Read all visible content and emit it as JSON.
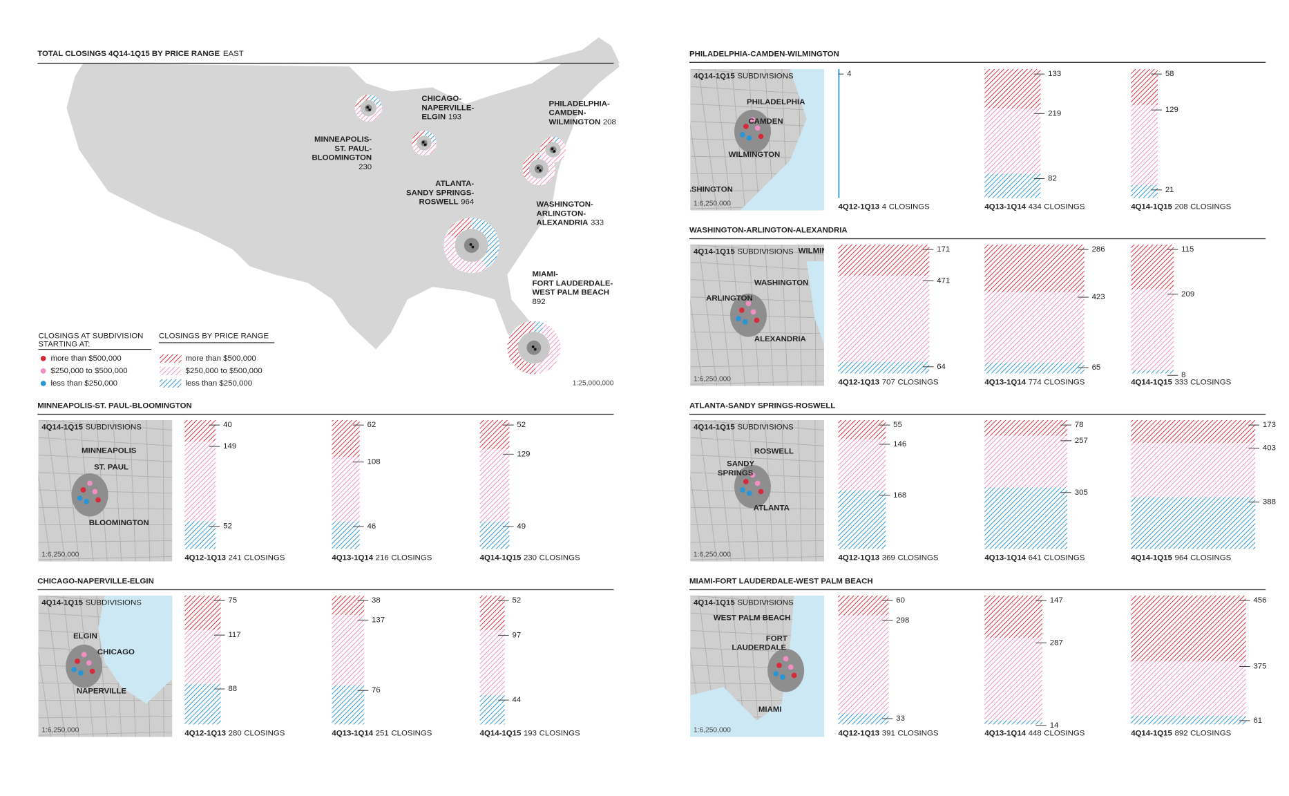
{
  "map": {
    "title": "TOTAL CLOSINGS 4Q14-1Q15 BY PRICE RANGE",
    "title_suffix": "EAST",
    "scale": "1:25,000,000",
    "labels": [
      {
        "lines": [
          "MINNEAPOLIS-",
          "ST. PAUL-",
          "BLOOMINGTON"
        ]
      },
      {
        "lines": [
          "CHICAGO-",
          "NAPERVILLE-",
          "ELGIN"
        ]
      },
      {
        "lines": [
          "PHILADELPHIA-",
          "CAMDEN-",
          "WILMINGTON"
        ]
      },
      {
        "lines": [
          "WASHINGTON-",
          "ARLINGTON-",
          "ALEXANDRIA"
        ]
      },
      {
        "lines": [
          "ATLANTA-",
          "SANDY SPRINGS-",
          "ROSWELL"
        ]
      },
      {
        "lines": [
          "MIAMI-",
          "FORT LAUDERDALE-",
          "WEST PALM BEACH"
        ]
      }
    ]
  },
  "legend": {
    "dot_title_lines": [
      "CLOSINGS AT SUBDIVISION",
      "STARTING AT:"
    ],
    "hatch_title": "CLOSINGS BY PRICE RANGE",
    "series": [
      {
        "name": "more than $500,000",
        "color": "#d62a3a"
      },
      {
        "name": "$250,000 to $500,000",
        "color": "#ef8fc3"
      },
      {
        "name": "less than $250,000",
        "color": "#2a95d5"
      }
    ]
  },
  "total_label": "CLOSINGS",
  "chart_data": [
    {
      "type": "stacked-bar",
      "title": "MINNEAPOLIS-ST. PAUL-BLOOMINGTON",
      "categories": [
        "4Q12-1Q13",
        "4Q13-1Q14",
        "4Q14-1Q15"
      ],
      "series": [
        {
          "values": [
            40,
            62,
            52
          ]
        },
        {
          "values": [
            149,
            108,
            129
          ]
        },
        {
          "values": [
            52,
            46,
            49
          ]
        }
      ],
      "totals": [
        241,
        216,
        230
      ],
      "inset": {
        "heading": "4Q14-1Q15",
        "heading_suffix": "SUBDIVISIONS",
        "places": [
          "MINNEAPOLIS",
          "ST. PAUL",
          "BLOOMINGTON"
        ],
        "scale": "1:6,250,000"
      }
    },
    {
      "type": "stacked-bar",
      "title": "CHICAGO-NAPERVILLE-ELGIN",
      "categories": [
        "4Q12-1Q13",
        "4Q13-1Q14",
        "4Q14-1Q15"
      ],
      "series": [
        {
          "values": [
            75,
            38,
            52
          ]
        },
        {
          "values": [
            117,
            137,
            97
          ]
        },
        {
          "values": [
            88,
            76,
            44
          ]
        }
      ],
      "totals": [
        280,
        251,
        193
      ],
      "inset": {
        "heading": "4Q14-1Q15",
        "heading_suffix": "SUBDIVISIONS",
        "places": [
          "ELGIN",
          "CHICAGO",
          "NAPERVILLE"
        ],
        "scale": "1:6,250,000"
      }
    },
    {
      "type": "stacked-bar",
      "title": "PHILADELPHIA-CAMDEN-WILMINGTON",
      "categories": [
        "4Q12-1Q13",
        "4Q13-1Q14",
        "4Q14-1Q15"
      ],
      "series": [
        {
          "values": [
            0,
            133,
            58
          ]
        },
        {
          "values": [
            0,
            219,
            129
          ]
        },
        {
          "values": [
            4,
            82,
            21
          ]
        }
      ],
      "totals": [
        4,
        434,
        208
      ],
      "inset": {
        "heading": "4Q14-1Q15",
        "heading_suffix": "SUBDIVISIONS",
        "places": [
          "PHILADELPHIA",
          "CAMDEN",
          "WILMINGTON",
          "WASHINGTON"
        ],
        "scale": "1:6,250,000"
      }
    },
    {
      "type": "stacked-bar",
      "title": "WASHINGTON-ARLINGTON-ALEXANDRIA",
      "categories": [
        "4Q12-1Q13",
        "4Q13-1Q14",
        "4Q14-1Q15"
      ],
      "series": [
        {
          "values": [
            171,
            286,
            115
          ]
        },
        {
          "values": [
            471,
            423,
            209
          ]
        },
        {
          "values": [
            64,
            65,
            8
          ]
        }
      ],
      "totals": [
        707,
        774,
        333
      ],
      "inset": {
        "heading": "4Q14-1Q15",
        "heading_suffix": "SUBDIVISIONS",
        "places": [
          "WILMINGTON",
          "WASHINGTON",
          "ARLINGTON",
          "ALEXANDRIA"
        ],
        "scale": "1:6,250,000"
      }
    },
    {
      "type": "stacked-bar",
      "title": "ATLANTA-SANDY SPRINGS-ROSWELL",
      "categories": [
        "4Q12-1Q13",
        "4Q13-1Q14",
        "4Q14-1Q15"
      ],
      "series": [
        {
          "values": [
            55,
            78,
            173
          ]
        },
        {
          "values": [
            146,
            257,
            403
          ]
        },
        {
          "values": [
            168,
            305,
            388
          ]
        }
      ],
      "totals": [
        369,
        641,
        964
      ],
      "inset": {
        "heading": "4Q14-1Q15",
        "heading_suffix": "SUBDIVISIONS",
        "places": [
          "ROSWELL",
          "SANDY",
          "SPRINGS",
          "ATLANTA"
        ],
        "scale": "1:6,250,000"
      }
    },
    {
      "type": "stacked-bar",
      "title": "MIAMI-FORT LAUDERDALE-WEST PALM BEACH",
      "categories": [
        "4Q12-1Q13",
        "4Q13-1Q14",
        "4Q14-1Q15"
      ],
      "series": [
        {
          "values": [
            60,
            147,
            456
          ]
        },
        {
          "values": [
            298,
            287,
            375
          ]
        },
        {
          "values": [
            33,
            14,
            61
          ]
        }
      ],
      "totals": [
        391,
        448,
        892
      ],
      "inset": {
        "heading": "4Q14-1Q15",
        "heading_suffix": "SUBDIVISIONS",
        "places": [
          "WEST PALM BEACH",
          "FORT",
          "LAUDERDALE",
          "MIAMI"
        ],
        "scale": "1:6,250,000"
      }
    }
  ]
}
